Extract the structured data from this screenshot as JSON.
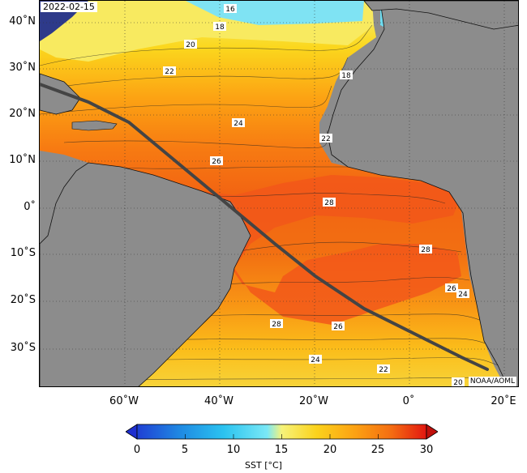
{
  "date": "2022-02-15",
  "credit": "NOAA/AOML",
  "lat_labels": [
    "40˚N",
    "30˚N",
    "20˚N",
    "10˚N",
    "0˚",
    "10˚S",
    "20˚S",
    "30˚S"
  ],
  "lon_labels": [
    "60˚W",
    "40˚W",
    "20˚W",
    "0˚",
    "20˚E"
  ],
  "colorbar": {
    "ticks": [
      "0",
      "5",
      "10",
      "15",
      "20",
      "25",
      "30"
    ],
    "title": "SST [°C]",
    "colors": [
      "#1f2fd0",
      "#1e7be0",
      "#22b6ef",
      "#5ce1f7",
      "#a9f2f7",
      "#f6f37a",
      "#fbd71d",
      "#fca313",
      "#f77b12",
      "#ee4a10",
      "#e2160f"
    ]
  },
  "contour_labels": [
    "16",
    "18",
    "20",
    "22",
    "18",
    "24",
    "22",
    "26",
    "28",
    "28",
    "26",
    "24",
    "28",
    "26",
    "24",
    "22",
    "20"
  ],
  "colors": {
    "land": "#8c8c8c",
    "track": "#444444"
  }
}
